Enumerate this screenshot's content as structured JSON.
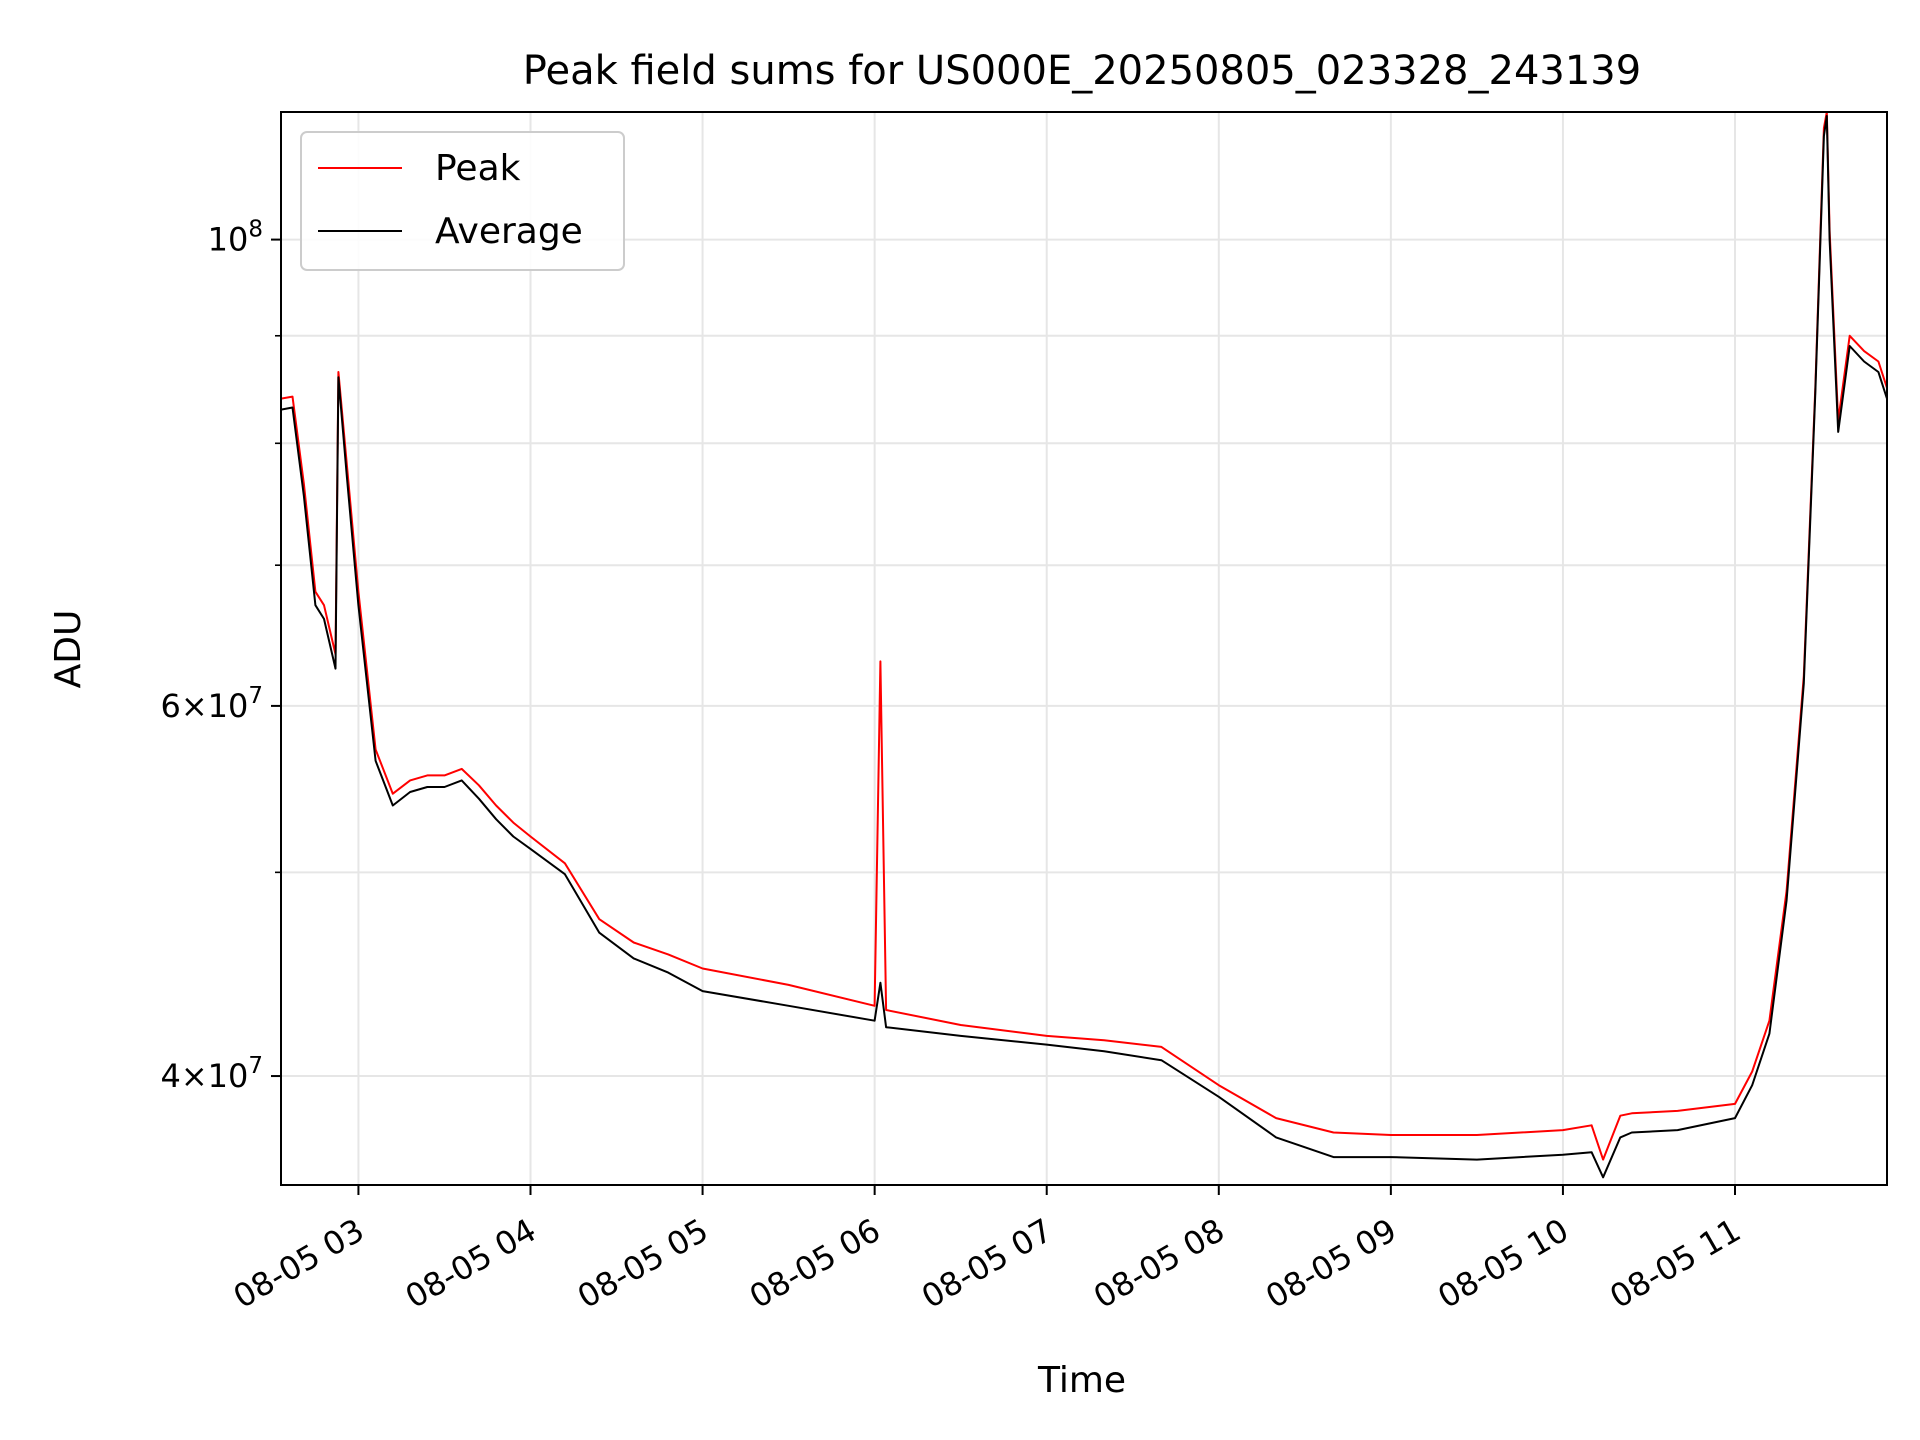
{
  "chart_data": {
    "type": "line",
    "title": "Peak field sums for US000E_20250805_023328_243139",
    "xlabel": "Time",
    "ylabel": "ADU",
    "y_scale": "log",
    "grid": true,
    "legend_position": "top-left",
    "xlim": [
      "2025-08-05 02:33",
      "2025-08-05 11:53"
    ],
    "ylim": [
      35500000,
      115000000
    ],
    "x_ticks": [
      "08-05 03",
      "08-05 04",
      "08-05 05",
      "08-05 06",
      "08-05 07",
      "08-05 08",
      "08-05 09",
      "08-05 10",
      "08-05 11"
    ],
    "y_tick_labels": [
      {
        "value": 40000000,
        "mantissa": "4",
        "times": "×",
        "base": "10",
        "exp": "7"
      },
      {
        "value": 60000000,
        "mantissa": "6",
        "times": "×",
        "base": "10",
        "exp": "7"
      },
      {
        "value": 100000000,
        "mantissa": "",
        "times": "",
        "base": "10",
        "exp": "8"
      }
    ],
    "y_minor_ticks": [
      50000000,
      70000000,
      80000000,
      90000000
    ],
    "x": [
      "2025-08-05 02:33",
      "2025-08-05 02:37",
      "2025-08-05 02:41",
      "2025-08-05 02:45",
      "2025-08-05 02:48",
      "2025-08-05 02:52",
      "2025-08-05 02:53",
      "2025-08-05 02:56",
      "2025-08-05 03:00",
      "2025-08-05 03:06",
      "2025-08-05 03:12",
      "2025-08-05 03:18",
      "2025-08-05 03:24",
      "2025-08-05 03:30",
      "2025-08-05 03:36",
      "2025-08-05 03:42",
      "2025-08-05 03:48",
      "2025-08-05 03:54",
      "2025-08-05 04:00",
      "2025-08-05 04:12",
      "2025-08-05 04:24",
      "2025-08-05 04:36",
      "2025-08-05 04:48",
      "2025-08-05 05:00",
      "2025-08-05 05:30",
      "2025-08-05 06:00",
      "2025-08-05 06:02",
      "2025-08-05 06:04",
      "2025-08-05 06:30",
      "2025-08-05 07:00",
      "2025-08-05 07:20",
      "2025-08-05 07:40",
      "2025-08-05 08:00",
      "2025-08-05 08:20",
      "2025-08-05 08:40",
      "2025-08-05 09:00",
      "2025-08-05 09:30",
      "2025-08-05 10:00",
      "2025-08-05 10:10",
      "2025-08-05 10:14",
      "2025-08-05 10:20",
      "2025-08-05 10:24",
      "2025-08-05 10:40",
      "2025-08-05 11:00",
      "2025-08-05 11:06",
      "2025-08-05 11:12",
      "2025-08-05 11:18",
      "2025-08-05 11:24",
      "2025-08-05 11:28",
      "2025-08-05 11:31",
      "2025-08-05 11:32",
      "2025-08-05 11:33",
      "2025-08-05 11:36",
      "2025-08-05 11:40",
      "2025-08-05 11:45",
      "2025-08-05 11:50",
      "2025-08-05 11:53"
    ],
    "series": [
      {
        "name": "Peak",
        "color": "#ff0000",
        "values": [
          84000000,
          84200000,
          76500000,
          68000000,
          67000000,
          63500000,
          86500000,
          78000000,
          68000000,
          57200000,
          54500000,
          55300000,
          55600000,
          55600000,
          56000000,
          55000000,
          53800000,
          52800000,
          52000000,
          50500000,
          47500000,
          46300000,
          45700000,
          45000000,
          44200000,
          43200000,
          63000000,
          43000000,
          42300000,
          41800000,
          41600000,
          41300000,
          39600000,
          38200000,
          37600000,
          37500000,
          37500000,
          37700000,
          37900000,
          36500000,
          38300000,
          38400000,
          38500000,
          38800000,
          40200000,
          42500000,
          49000000,
          62000000,
          85000000,
          113000000,
          115000000,
          101000000,
          82000000,
          90000000,
          88500000,
          87500000,
          85000000
        ]
      },
      {
        "name": "Average",
        "color": "#000000",
        "values": [
          83000000,
          83200000,
          75500000,
          67000000,
          66000000,
          62500000,
          86000000,
          77000000,
          67000000,
          56500000,
          53800000,
          54600000,
          54900000,
          54900000,
          55300000,
          54200000,
          53000000,
          52000000,
          51300000,
          49900000,
          46800000,
          45500000,
          44800000,
          43900000,
          43200000,
          42500000,
          44300000,
          42200000,
          41800000,
          41400000,
          41100000,
          40700000,
          39100000,
          37400000,
          36600000,
          36600000,
          36500000,
          36700000,
          36800000,
          35800000,
          37400000,
          37600000,
          37700000,
          38200000,
          39600000,
          41900000,
          48500000,
          61500000,
          84500000,
          112000000,
          114500000,
          100000000,
          81000000,
          89000000,
          87500000,
          86500000,
          84000000
        ]
      }
    ]
  }
}
